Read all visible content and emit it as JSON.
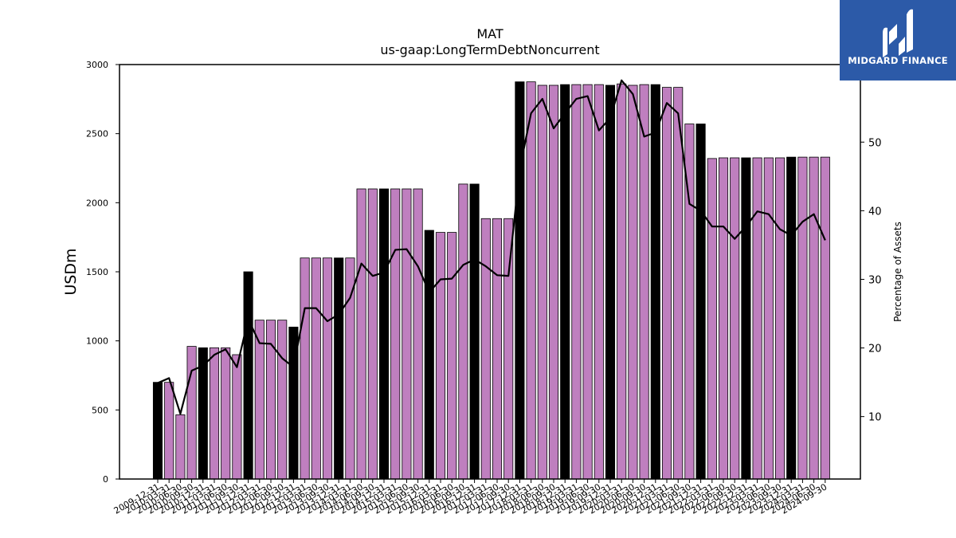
{
  "brand": {
    "name": "MIDGARD FINANCE",
    "bg_color": "#2c5aa8",
    "icon": "midgard-logo-icon"
  },
  "chart_data": {
    "type": "bar",
    "title": "MAT",
    "subtitle": "us-gaap:LongTermDebtNoncurrent",
    "ylabel": "USDm",
    "y2label": "Percentage of Assets",
    "ylim": [
      0,
      3000
    ],
    "y2lim": [
      0.9,
      61.3
    ],
    "yticks": [
      0,
      500,
      1000,
      1500,
      2000,
      2500,
      3000
    ],
    "y2ticks": [
      10,
      20,
      30,
      40,
      50
    ],
    "grid": false,
    "colors": {
      "annual": "#000000",
      "quarterly": "#bf7fbf",
      "line": "#000000"
    },
    "categories": [
      "2009-12-31",
      "2010-03-31",
      "2010-06-30",
      "2010-09-30",
      "2010-12-31",
      "2011-03-31",
      "2011-06-30",
      "2011-09-30",
      "2011-12-31",
      "2012-03-31",
      "2012-06-30",
      "2012-09-30",
      "2012-12-31",
      "2013-03-31",
      "2013-06-30",
      "2013-09-30",
      "2013-12-31",
      "2014-03-31",
      "2014-06-30",
      "2014-09-30",
      "2014-12-31",
      "2015-03-31",
      "2015-06-30",
      "2015-09-30",
      "2015-12-31",
      "2016-03-31",
      "2016-06-30",
      "2016-09-30",
      "2016-12-31",
      "2017-03-31",
      "2017-06-30",
      "2017-09-30",
      "2017-12-31",
      "2018-03-31",
      "2018-06-30",
      "2018-09-30",
      "2018-12-31",
      "2019-03-31",
      "2019-06-30",
      "2019-09-30",
      "2019-12-31",
      "2020-03-31",
      "2020-06-30",
      "2020-09-30",
      "2020-12-31",
      "2021-03-31",
      "2021-06-30",
      "2021-09-30",
      "2021-12-31",
      "2022-03-31",
      "2022-06-30",
      "2022-09-30",
      "2022-12-31",
      "2023-03-31",
      "2023-06-30",
      "2023-09-30",
      "2023-12-31",
      "2024-03-31",
      "2024-06-30",
      "2024-09-30"
    ],
    "values": [
      700,
      700,
      465,
      960,
      950,
      950,
      950,
      900,
      1500,
      1150,
      1150,
      1150,
      1100,
      1600,
      1600,
      1600,
      1600,
      1600,
      2100,
      2100,
      2100,
      2100,
      2100,
      2100,
      1800,
      1785,
      1785,
      2135,
      2135,
      1885,
      1885,
      1885,
      2875,
      2875,
      2850,
      2850,
      2855,
      2855,
      2855,
      2855,
      2850,
      2860,
      2850,
      2855,
      2855,
      2835,
      2835,
      2570,
      2570,
      2320,
      2325,
      2325,
      2325,
      2325,
      2325,
      2325,
      2330,
      2330,
      2330,
      2330
    ],
    "annual": [
      true,
      false,
      false,
      false,
      true,
      false,
      false,
      false,
      true,
      false,
      false,
      false,
      true,
      false,
      false,
      false,
      true,
      false,
      false,
      false,
      true,
      false,
      false,
      false,
      true,
      false,
      false,
      false,
      true,
      false,
      false,
      false,
      true,
      false,
      false,
      false,
      true,
      false,
      false,
      false,
      true,
      false,
      false,
      false,
      true,
      false,
      false,
      false,
      true,
      false,
      false,
      false,
      true,
      false,
      false,
      false,
      true,
      false,
      false,
      false
    ],
    "pct_of_assets": [
      14.9,
      15.6,
      10.4,
      16.7,
      17.4,
      19.0,
      19.8,
      17.2,
      24.2,
      20.7,
      20.6,
      18.5,
      17.2,
      25.8,
      25.8,
      23.9,
      24.9,
      27.3,
      32.3,
      30.5,
      31.0,
      34.3,
      34.4,
      31.9,
      28.1,
      30.0,
      30.1,
      32.1,
      32.9,
      31.9,
      30.6,
      30.5,
      46.1,
      54.2,
      56.3,
      52.0,
      54.2,
      56.3,
      56.7,
      51.7,
      53.5,
      59.0,
      57.0,
      50.8,
      51.4,
      55.7,
      54.2,
      41.0,
      40.0,
      37.7,
      37.7,
      35.9,
      37.7,
      39.9,
      39.5,
      37.3,
      36.4,
      38.4,
      39.5,
      35.7
    ]
  }
}
